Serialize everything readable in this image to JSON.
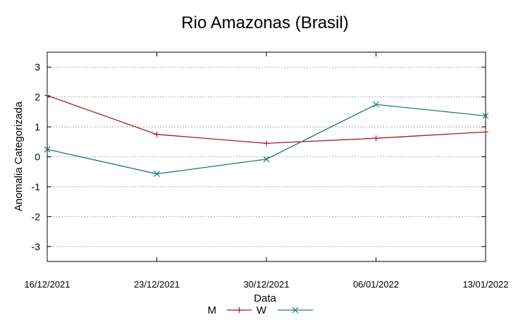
{
  "chart_data": {
    "type": "line",
    "title": "Rio Amazonas (Brasil)",
    "xlabel": "Data",
    "ylabel": "Anomalia Categorizada",
    "categories": [
      "16/12/2021",
      "23/12/2021",
      "30/12/2021",
      "06/01/2022",
      "13/01/2022"
    ],
    "series": [
      {
        "name": "M",
        "color": "#a51d1d",
        "marker": "plus",
        "values": [
          2.05,
          0.75,
          0.45,
          0.62,
          0.83
        ]
      },
      {
        "name": "W",
        "color": "#1d7a7a",
        "marker": "cross",
        "values": [
          0.25,
          -0.57,
          -0.08,
          1.75,
          1.37
        ]
      }
    ],
    "ylim": [
      -3.5,
      3.5
    ],
    "yticks": [
      -3,
      -2,
      -1,
      0,
      1,
      2,
      3
    ],
    "ytick_labels": [
      "-3",
      "-2",
      "-1",
      "0",
      "1",
      "2",
      "3"
    ],
    "grid": true,
    "legend_position": "bottom-center"
  }
}
